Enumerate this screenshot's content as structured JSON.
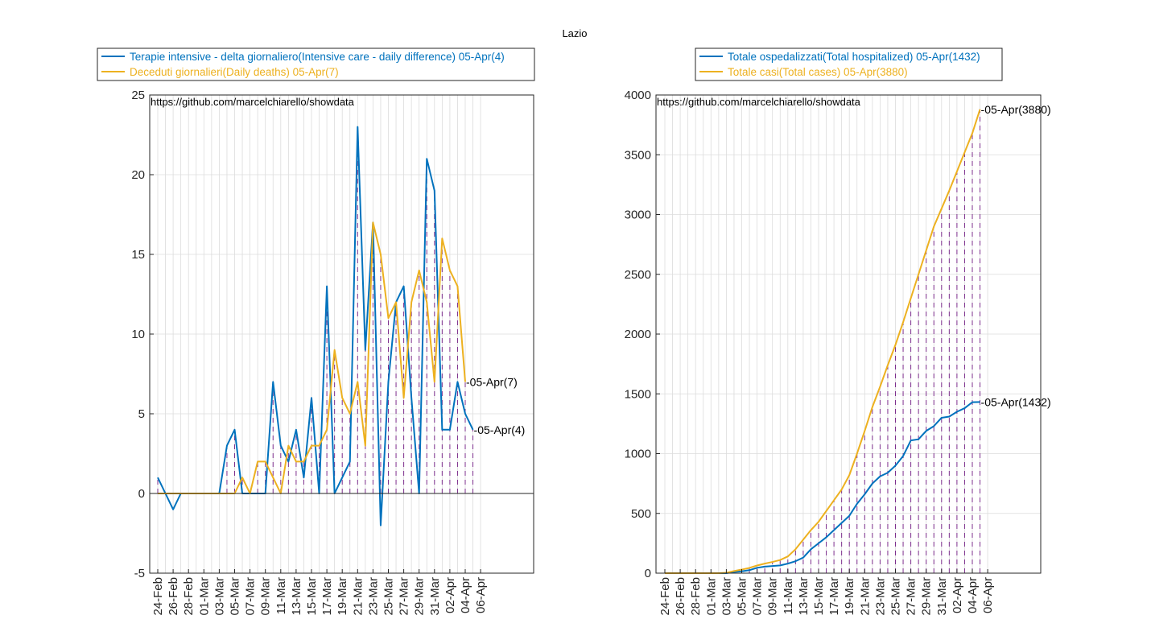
{
  "figure": {
    "title": "Lazio"
  },
  "dates": [
    "24-Feb",
    "25-Feb",
    "26-Feb",
    "27-Feb",
    "28-Feb",
    "29-Feb",
    "01-Mar",
    "02-Mar",
    "03-Mar",
    "04-Mar",
    "05-Mar",
    "06-Mar",
    "07-Mar",
    "08-Mar",
    "09-Mar",
    "10-Mar",
    "11-Mar",
    "12-Mar",
    "13-Mar",
    "14-Mar",
    "15-Mar",
    "16-Mar",
    "17-Mar",
    "18-Mar",
    "19-Mar",
    "20-Mar",
    "21-Mar",
    "22-Mar",
    "23-Mar",
    "24-Mar",
    "25-Mar",
    "26-Mar",
    "27-Mar",
    "28-Mar",
    "29-Mar",
    "30-Mar",
    "31-Mar",
    "01-Apr",
    "02-Apr",
    "03-Apr",
    "04-Apr",
    "05-Apr",
    "06-Apr"
  ],
  "chart_data": [
    {
      "type": "line",
      "title": "",
      "xlabel": "",
      "ylabel": "",
      "ylim": [
        -5,
        25
      ],
      "yticks": [
        -5,
        0,
        5,
        10,
        15,
        20,
        25
      ],
      "grid": true,
      "legend_position": "top",
      "watermark": "https://github.com/marcelchiarello/showdata",
      "x_tick_labels": [
        "24-Feb",
        "26-Feb",
        "28-Feb",
        "01-Mar",
        "03-Mar",
        "05-Mar",
        "07-Mar",
        "09-Mar",
        "11-Mar",
        "13-Mar",
        "15-Mar",
        "17-Mar",
        "19-Mar",
        "21-Mar",
        "23-Mar",
        "25-Mar",
        "27-Mar",
        "29-Mar",
        "31-Mar",
        "02-Apr",
        "04-Apr",
        "06-Apr"
      ],
      "series": [
        {
          "name": "Terapie intensive - delta giornaliero(Intensive care - daily difference) 05-Apr(4)",
          "color": "#0072BD",
          "values": [
            1,
            0,
            -1,
            0,
            0,
            0,
            0,
            0,
            0,
            3,
            4,
            0,
            0,
            0,
            0,
            7,
            3,
            2,
            4,
            1,
            6,
            0,
            13,
            0,
            1,
            2,
            23,
            9,
            17,
            -2,
            7,
            12,
            13,
            6,
            0,
            21,
            19,
            4,
            4,
            7,
            5,
            4
          ],
          "end_label": "05-Apr(4)"
        },
        {
          "name": "Deceduti giornalieri(Daily deaths) 05-Apr(7)",
          "color": "#EDB120",
          "values": [
            0,
            0,
            0,
            0,
            0,
            0,
            0,
            0,
            0,
            0,
            0,
            1,
            0,
            2,
            2,
            1,
            0,
            3,
            2,
            2,
            3,
            3,
            4,
            9,
            6,
            5,
            7,
            3,
            17,
            15,
            11,
            12,
            6,
            12,
            14,
            12,
            7,
            16,
            14,
            13,
            7
          ],
          "end_label": "05-Apr(7)"
        }
      ]
    },
    {
      "type": "line",
      "title": "",
      "xlabel": "",
      "ylabel": "",
      "ylim": [
        0,
        4000
      ],
      "yticks": [
        0,
        500,
        1000,
        1500,
        2000,
        2500,
        3000,
        3500,
        4000
      ],
      "grid": true,
      "legend_position": "top",
      "watermark": "https://github.com/marcelchiarello/showdata",
      "x_tick_labels": [
        "24-Feb",
        "26-Feb",
        "28-Feb",
        "01-Mar",
        "03-Mar",
        "05-Mar",
        "07-Mar",
        "09-Mar",
        "11-Mar",
        "13-Mar",
        "15-Mar",
        "17-Mar",
        "19-Mar",
        "21-Mar",
        "23-Mar",
        "25-Mar",
        "27-Mar",
        "29-Mar",
        "31-Mar",
        "02-Apr",
        "04-Apr",
        "06-Apr"
      ],
      "series": [
        {
          "name": "Totale ospedalizzati(Total hospitalized) 05-Apr(1432)",
          "color": "#0072BD",
          "values": [
            0,
            0,
            0,
            0,
            0,
            0,
            0,
            0,
            0,
            10,
            15,
            25,
            45,
            55,
            60,
            65,
            80,
            100,
            130,
            200,
            250,
            300,
            360,
            420,
            480,
            580,
            660,
            750,
            810,
            840,
            900,
            980,
            1110,
            1120,
            1190,
            1230,
            1300,
            1310,
            1350,
            1380,
            1430,
            1432
          ],
          "end_label": "05-Apr(1432)"
        },
        {
          "name": "Totale casi(Total cases) 05-Apr(3880)",
          "color": "#EDB120",
          "values": [
            0,
            0,
            0,
            0,
            0,
            0,
            0,
            0,
            3,
            18,
            30,
            44,
            64,
            80,
            94,
            110,
            140,
            200,
            280,
            360,
            430,
            520,
            610,
            700,
            820,
            1000,
            1190,
            1390,
            1560,
            1740,
            1910,
            2100,
            2300,
            2500,
            2700,
            2900,
            3050,
            3200,
            3360,
            3520,
            3680,
            3880
          ],
          "end_label": "05-Apr(3880)"
        }
      ]
    }
  ]
}
